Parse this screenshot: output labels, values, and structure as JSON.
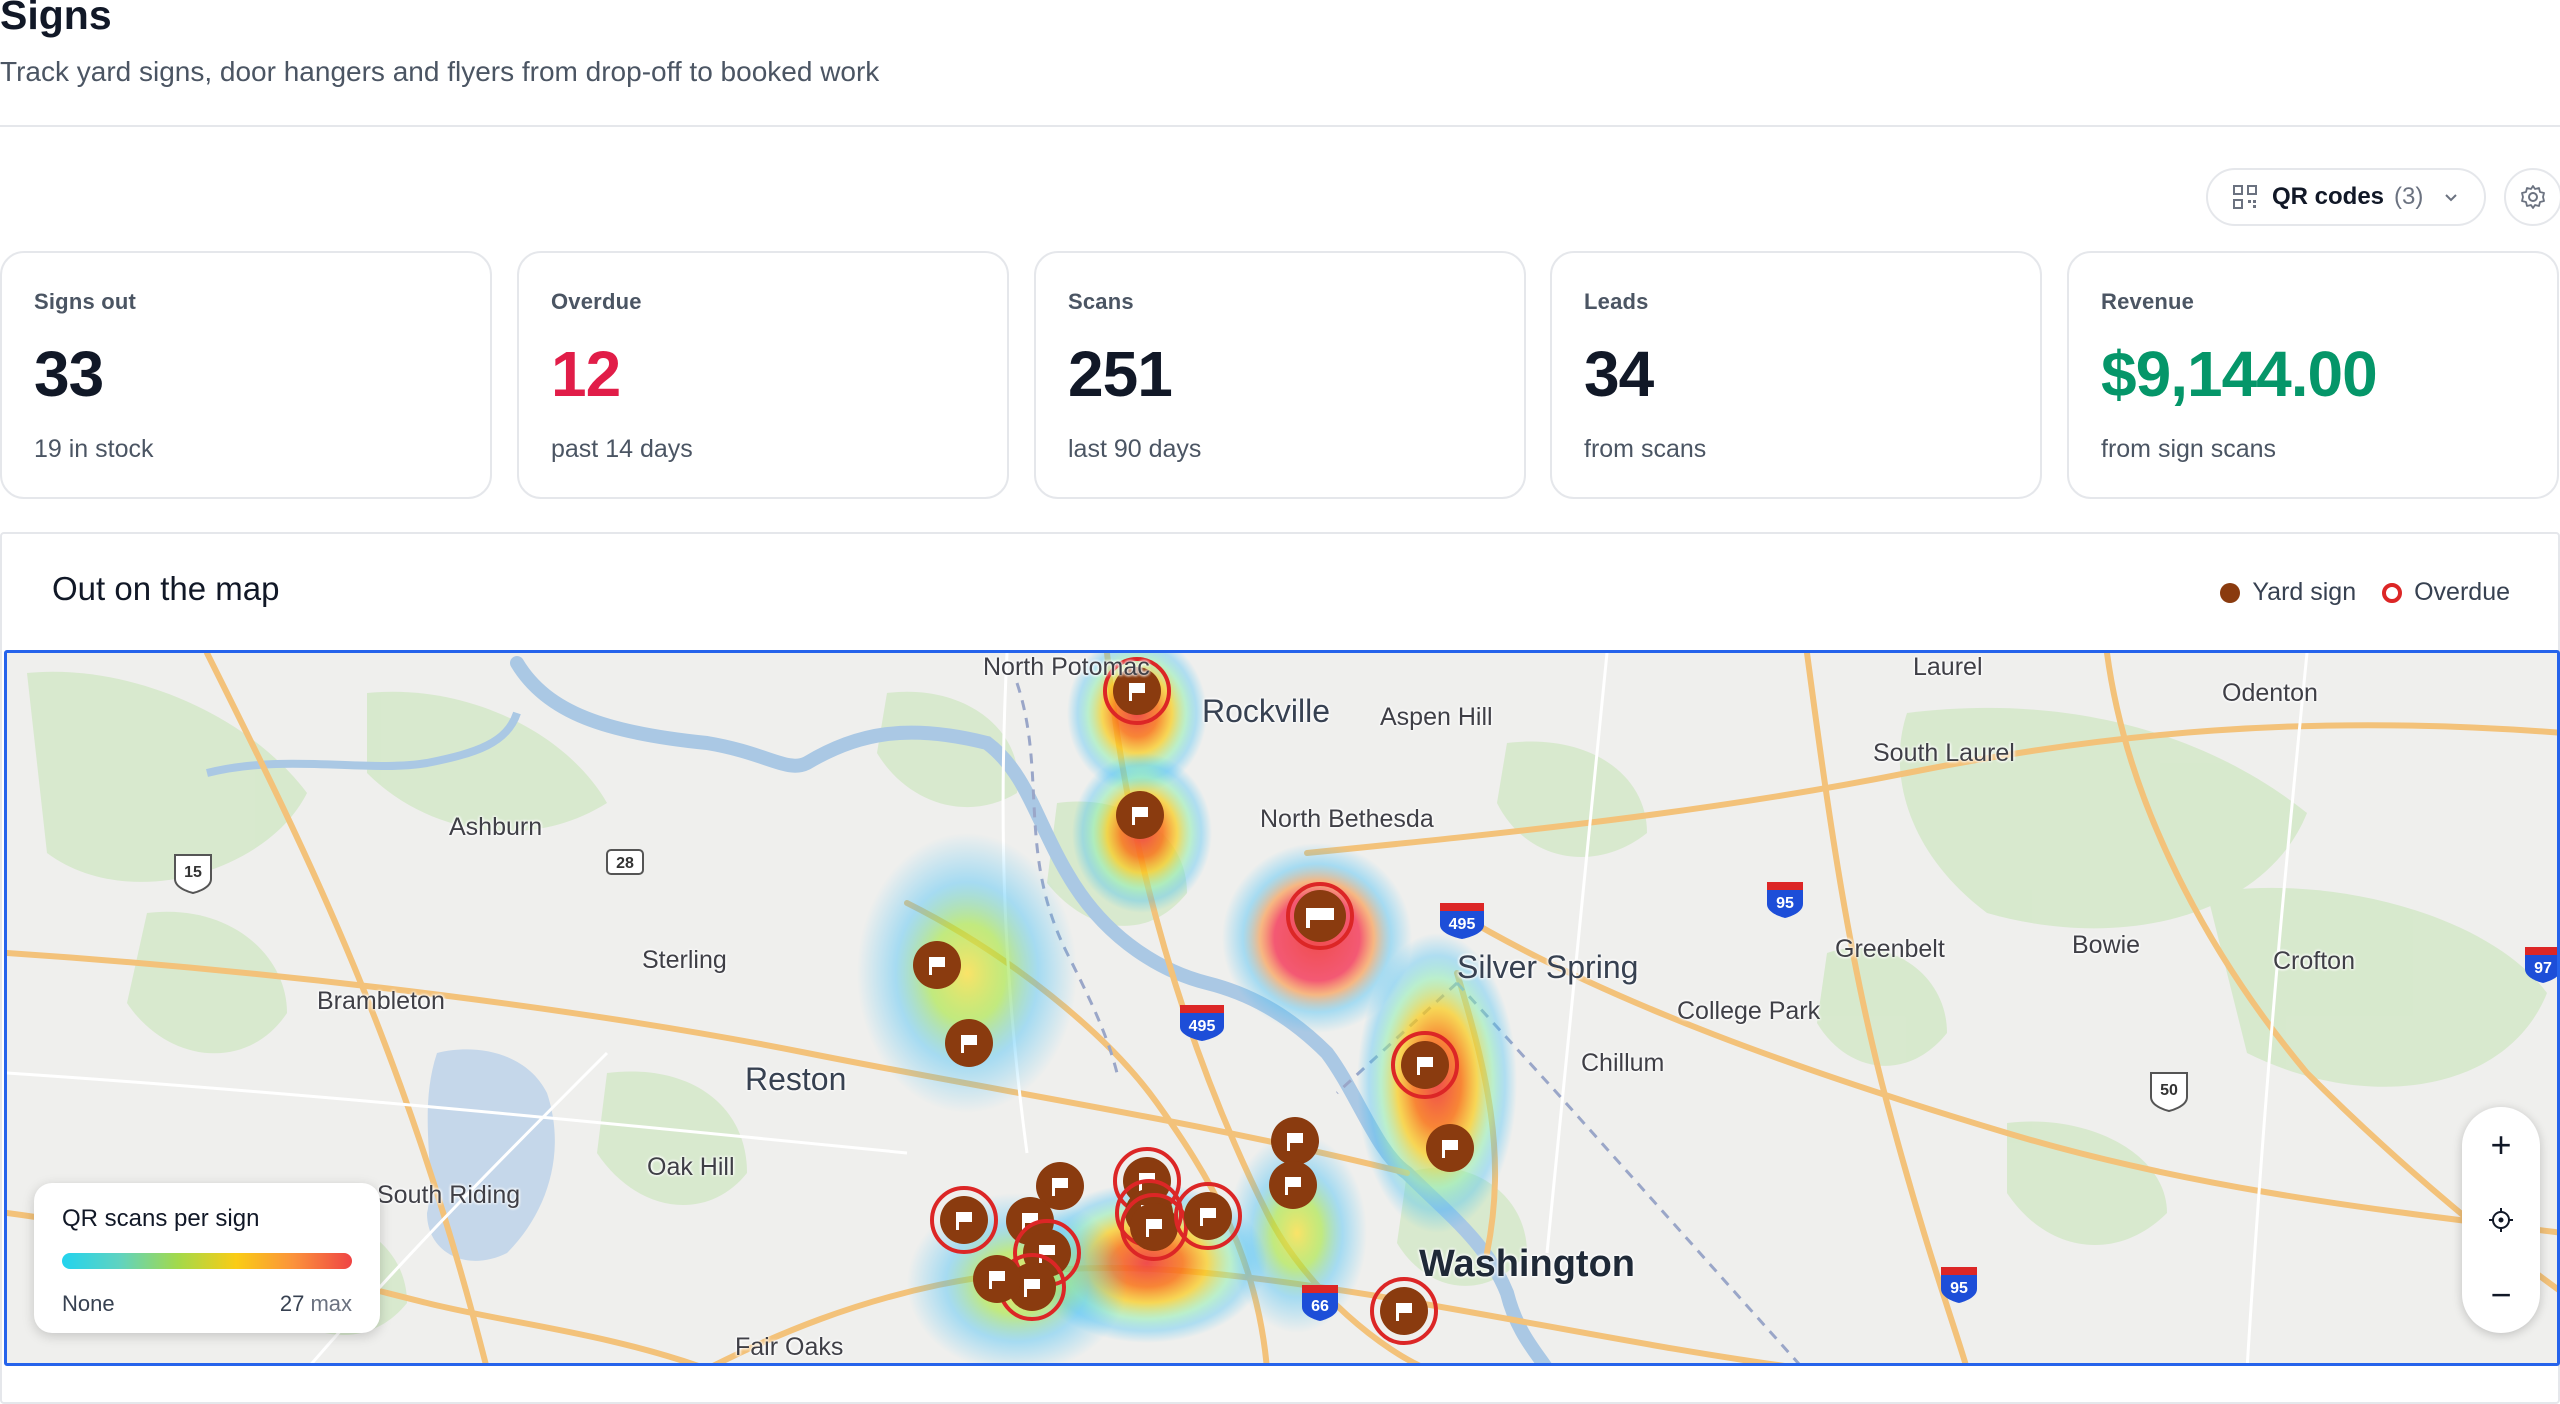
{
  "header": {
    "title": "Signs",
    "subtitle": "Track yard signs, door hangers and flyers from drop-off to booked work"
  },
  "toolbar": {
    "qr_label": "QR codes",
    "qr_count": "(3)",
    "qr_icon": "qr-code-icon",
    "settings_icon": "gear-icon"
  },
  "stats": [
    {
      "label": "Signs out",
      "value": "33",
      "sub": "19 in stock",
      "color": "#111827"
    },
    {
      "label": "Overdue",
      "value": "12",
      "sub": "past 14 days",
      "color": "#e11d48"
    },
    {
      "label": "Scans",
      "value": "251",
      "sub": "last 90 days",
      "color": "#111827"
    },
    {
      "label": "Leads",
      "value": "34",
      "sub": "from scans",
      "color": "#111827"
    },
    {
      "label": "Revenue",
      "value": "$9,144.00",
      "sub": "from sign scans",
      "color": "#059669"
    }
  ],
  "map": {
    "title": "Out on the map",
    "legend": {
      "yard_sign": "Yard sign",
      "overdue": "Overdue"
    },
    "places": [
      "North Potomac",
      "Rockville",
      "Aspen Hill",
      "Laurel",
      "Odenton",
      "South Laurel",
      "North Bethesda",
      "Ashburn",
      "Sterling",
      "Greenbelt",
      "Bowie",
      "Crofton",
      "Silver Spring",
      "College Park",
      "Brambleton",
      "Reston",
      "Chillum",
      "Oak Hill",
      "South Riding",
      "Washington",
      "Fair Oaks"
    ],
    "shields": [
      "15",
      "28",
      "495",
      "95",
      "495",
      "97",
      "50",
      "66",
      "95"
    ],
    "scale_legend": {
      "title": "QR scans per sign",
      "min": "None",
      "max_value": "27",
      "max_suffix": "max"
    },
    "controls": {
      "zoom_in": "+",
      "zoom_out": "−"
    }
  }
}
